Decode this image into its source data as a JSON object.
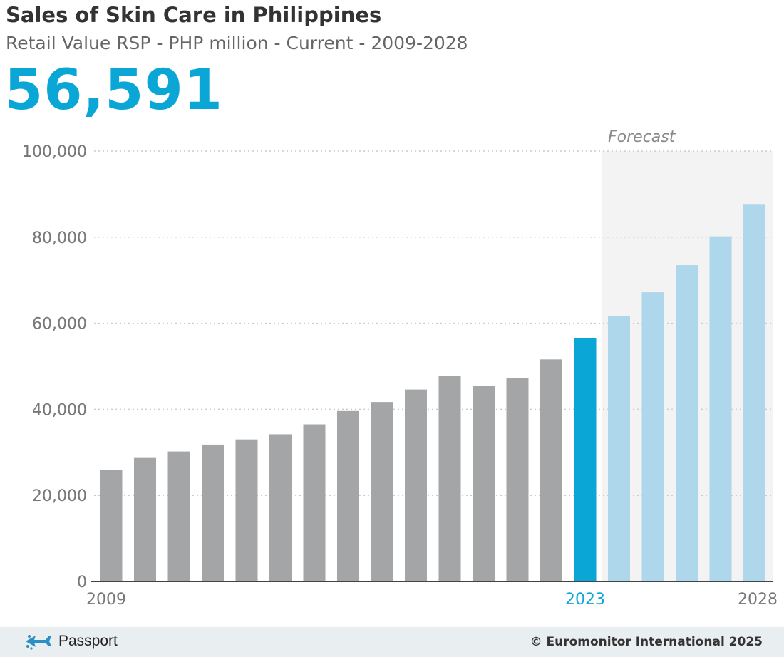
{
  "header": {
    "title": "Sales of Skin Care in Philippines",
    "subtitle": "Retail Value RSP - PHP million - Current - 2009-2028",
    "headline_value": "56,591"
  },
  "chart_data": {
    "type": "bar",
    "categories": [
      "2009",
      "2010",
      "2011",
      "2012",
      "2013",
      "2014",
      "2015",
      "2016",
      "2017",
      "2018",
      "2019",
      "2020",
      "2021",
      "2022",
      "2023",
      "2024",
      "2025",
      "2026",
      "2027",
      "2028"
    ],
    "values": [
      25900,
      28700,
      30200,
      31800,
      33000,
      34200,
      36500,
      39600,
      41700,
      44600,
      47800,
      45500,
      47200,
      51600,
      56591,
      61700,
      67200,
      73500,
      80200,
      87700
    ],
    "highlight_category": "2023",
    "forecast_start": "2024",
    "forecast_label": "Forecast",
    "x_tick_labels": [
      "2009",
      "2023",
      "2028"
    ],
    "y_ticks": [
      0,
      20000,
      40000,
      60000,
      80000,
      100000
    ],
    "y_tick_labels": [
      "0",
      "20,000",
      "40,000",
      "60,000",
      "80,000",
      "100,000"
    ],
    "ylim": [
      0,
      100000
    ],
    "grid": true,
    "colors": {
      "historic": "#a3a5a7",
      "highlight": "#0aa6d6",
      "forecast": "#aed7ec",
      "forecast_band": "#f3f3f4",
      "gridline": "#cccccc",
      "axis_text": "#777777",
      "highlight_text": "#0aa6d6"
    }
  },
  "footer": {
    "brand": "Passport",
    "brand_icon": "passport-logo-icon",
    "copyright": "© Euromonitor International 2025"
  }
}
